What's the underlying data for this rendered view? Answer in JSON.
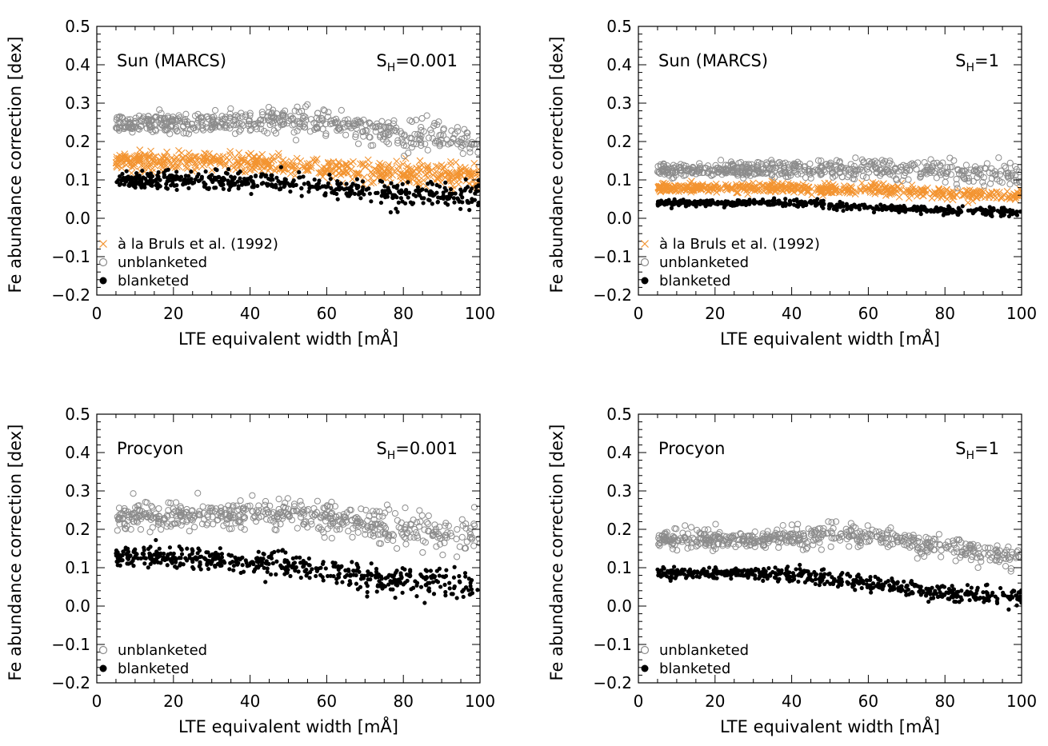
{
  "chart_data": [
    {
      "type": "scatter",
      "title": "Sun (MARCS)",
      "annotation": {
        "main": "S",
        "sub": "H",
        "rest": "=0.001"
      },
      "xlabel": "LTE equivalent width [mÅ]",
      "ylabel": "Fe abundance correction [dex]",
      "xlim": [
        0,
        100
      ],
      "ylim": [
        -0.2,
        0.5
      ],
      "xticks": [
        0,
        20,
        40,
        60,
        80,
        100
      ],
      "yticks": [
        -0.2,
        -0.1,
        0.0,
        0.1,
        0.2,
        0.3,
        0.4,
        0.5
      ],
      "xtick_labels": [
        "0",
        "20",
        "40",
        "60",
        "80",
        "100"
      ],
      "ytick_labels": [
        "−0.2",
        "−0.1",
        "0.0",
        "0.1",
        "0.2",
        "0.3",
        "0.4",
        "0.5"
      ],
      "legend_placement": "bottom-left",
      "series": [
        {
          "name": "à la Bruls et al. (1992)",
          "marker": "x",
          "color": "#F39431",
          "trend": [
            [
              5,
              0.15
            ],
            [
              30,
              0.15
            ],
            [
              50,
              0.14
            ],
            [
              70,
              0.12
            ],
            [
              100,
              0.11
            ]
          ],
          "spread": 0.012
        },
        {
          "name": "unblanketed",
          "marker": "open-circle",
          "color": "#8C8C8C",
          "trend": [
            [
              5,
              0.245
            ],
            [
              25,
              0.25
            ],
            [
              50,
              0.255
            ],
            [
              65,
              0.24
            ],
            [
              80,
              0.22
            ],
            [
              100,
              0.2
            ]
          ],
          "spread": 0.015
        },
        {
          "name": "blanketed",
          "marker": "filled-circle",
          "color": "#000000",
          "trend": [
            [
              5,
              0.1
            ],
            [
              30,
              0.1
            ],
            [
              45,
              0.095
            ],
            [
              60,
              0.08
            ],
            [
              80,
              0.065
            ],
            [
              100,
              0.055
            ]
          ],
          "spread": 0.012
        }
      ]
    },
    {
      "type": "scatter",
      "title": "Sun (MARCS)",
      "annotation": {
        "main": "S",
        "sub": "H",
        "rest": "=1"
      },
      "xlabel": "LTE equivalent width [mÅ]",
      "ylabel": "Fe abundance correction [dex]",
      "xlim": [
        0,
        100
      ],
      "ylim": [
        -0.2,
        0.5
      ],
      "xticks": [
        0,
        20,
        40,
        60,
        80,
        100
      ],
      "yticks": [
        -0.2,
        -0.1,
        0.0,
        0.1,
        0.2,
        0.3,
        0.4,
        0.5
      ],
      "xtick_labels": [
        "0",
        "20",
        "40",
        "60",
        "80",
        "100"
      ],
      "ytick_labels": [
        "−0.2",
        "−0.1",
        "0.0",
        "0.1",
        "0.2",
        "0.3",
        "0.4",
        "0.5"
      ],
      "legend_placement": "bottom-left",
      "series": [
        {
          "name": "à la Bruls et al. (1992)",
          "marker": "x",
          "color": "#F39431",
          "trend": [
            [
              5,
              0.08
            ],
            [
              30,
              0.08
            ],
            [
              60,
              0.075
            ],
            [
              80,
              0.065
            ],
            [
              100,
              0.06
            ]
          ],
          "spread": 0.006
        },
        {
          "name": "unblanketed",
          "marker": "open-circle",
          "color": "#8C8C8C",
          "trend": [
            [
              5,
              0.125
            ],
            [
              30,
              0.125
            ],
            [
              60,
              0.13
            ],
            [
              80,
              0.12
            ],
            [
              100,
              0.11
            ]
          ],
          "spread": 0.01
        },
        {
          "name": "blanketed",
          "marker": "filled-circle",
          "color": "#000000",
          "trend": [
            [
              5,
              0.04
            ],
            [
              40,
              0.04
            ],
            [
              60,
              0.028
            ],
            [
              80,
              0.02
            ],
            [
              100,
              0.015
            ]
          ],
          "spread": 0.004
        }
      ]
    },
    {
      "type": "scatter",
      "title": "Procyon",
      "annotation": {
        "main": "S",
        "sub": "H",
        "rest": "=0.001"
      },
      "xlabel": "LTE equivalent width [mÅ]",
      "ylabel": "Fe abundance correction [dex]",
      "xlim": [
        0,
        100
      ],
      "ylim": [
        -0.2,
        0.5
      ],
      "xticks": [
        0,
        20,
        40,
        60,
        80,
        100
      ],
      "yticks": [
        -0.2,
        -0.1,
        0.0,
        0.1,
        0.2,
        0.3,
        0.4,
        0.5
      ],
      "xtick_labels": [
        "0",
        "20",
        "40",
        "60",
        "80",
        "100"
      ],
      "ytick_labels": [
        "−0.2",
        "−0.1",
        "0.0",
        "0.1",
        "0.2",
        "0.3",
        "0.4",
        "0.5"
      ],
      "legend_placement": "bottom-left",
      "series": [
        {
          "name": "unblanketed",
          "marker": "open-circle",
          "color": "#8C8C8C",
          "trend": [
            [
              5,
              0.23
            ],
            [
              25,
              0.235
            ],
            [
              45,
              0.25
            ],
            [
              60,
              0.23
            ],
            [
              80,
              0.2
            ],
            [
              100,
              0.18
            ]
          ],
          "spread": 0.018
        },
        {
          "name": "blanketed",
          "marker": "filled-circle",
          "color": "#000000",
          "trend": [
            [
              5,
              0.13
            ],
            [
              25,
              0.125
            ],
            [
              45,
              0.115
            ],
            [
              60,
              0.09
            ],
            [
              80,
              0.065
            ],
            [
              100,
              0.05
            ]
          ],
          "spread": 0.015
        }
      ]
    },
    {
      "type": "scatter",
      "title": "Procyon",
      "annotation": {
        "main": "S",
        "sub": "H",
        "rest": "=1"
      },
      "xlabel": "LTE equivalent width [mÅ]",
      "ylabel": "Fe abundance correction [dex]",
      "xlim": [
        0,
        100
      ],
      "ylim": [
        -0.2,
        0.5
      ],
      "xticks": [
        0,
        20,
        40,
        60,
        80,
        100
      ],
      "yticks": [
        -0.2,
        -0.1,
        0.0,
        0.1,
        0.2,
        0.3,
        0.4,
        0.5
      ],
      "xtick_labels": [
        "0",
        "20",
        "40",
        "60",
        "80",
        "100"
      ],
      "ytick_labels": [
        "−0.2",
        "−0.1",
        "0.0",
        "0.1",
        "0.2",
        "0.3",
        "0.4",
        "0.5"
      ],
      "legend_placement": "bottom-left",
      "series": [
        {
          "name": "unblanketed",
          "marker": "open-circle",
          "color": "#8C8C8C",
          "trend": [
            [
              5,
              0.17
            ],
            [
              30,
              0.175
            ],
            [
              55,
              0.185
            ],
            [
              70,
              0.17
            ],
            [
              85,
              0.145
            ],
            [
              100,
              0.13
            ]
          ],
          "spread": 0.012
        },
        {
          "name": "blanketed",
          "marker": "filled-circle",
          "color": "#000000",
          "trend": [
            [
              5,
              0.085
            ],
            [
              40,
              0.083
            ],
            [
              55,
              0.065
            ],
            [
              70,
              0.045
            ],
            [
              85,
              0.03
            ],
            [
              100,
              0.025
            ]
          ],
          "spread": 0.008
        }
      ]
    }
  ]
}
